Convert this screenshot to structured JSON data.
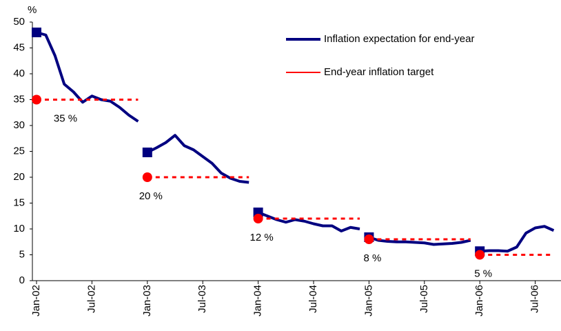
{
  "chart_data": {
    "type": "line",
    "y_axis_label": "%",
    "categories": [
      "Jan-02",
      null,
      null,
      null,
      null,
      null,
      "Jul-02",
      null,
      null,
      null,
      null,
      null,
      "Jan-03",
      null,
      null,
      null,
      null,
      null,
      "Jul-03",
      null,
      null,
      null,
      null,
      null,
      "Jan-04",
      null,
      null,
      null,
      null,
      null,
      "Jul-04",
      null,
      null,
      null,
      null,
      null,
      "Jan-05",
      null,
      null,
      null,
      null,
      null,
      "Jul-05",
      null,
      null,
      null,
      null,
      null,
      "Jan-06",
      null,
      null,
      null,
      null,
      null,
      "Jul-06",
      null,
      null
    ],
    "ylim": [
      0,
      50
    ],
    "yticks": [
      0,
      5,
      10,
      15,
      20,
      25,
      30,
      35,
      40,
      45,
      50
    ],
    "legend": "top-right",
    "series": [
      {
        "name": "Inflation expectation for end-year",
        "color": "#000080",
        "style": "solid",
        "marker": "square",
        "values": [
          48,
          47.5,
          43.5,
          38,
          36.5,
          34.5,
          35.7,
          35,
          34.7,
          33.5,
          32,
          30.8,
          null,
          null,
          null,
          null,
          null,
          null,
          null,
          null,
          null,
          null,
          null,
          null,
          null,
          null,
          null,
          null,
          null,
          null,
          null,
          null,
          null,
          null,
          null,
          null,
          null,
          null,
          null,
          null,
          null,
          null,
          null,
          null,
          null,
          null,
          null,
          null,
          null,
          null,
          null,
          null,
          null,
          null,
          null,
          null,
          null
        ]
      },
      {
        "color": "#000080",
        "style": "solid",
        "marker": "square",
        "values": [
          null,
          null,
          null,
          null,
          null,
          null,
          null,
          null,
          null,
          null,
          null,
          null,
          24.8,
          25.7,
          26.7,
          28.1,
          26.1,
          25.3,
          24,
          22.7,
          20.8,
          19.8,
          19.2,
          19,
          null,
          null,
          null,
          null,
          null,
          null,
          null,
          null,
          null,
          null,
          null,
          null,
          null,
          null,
          null,
          null,
          null,
          null,
          null,
          null,
          null,
          null,
          null,
          null,
          null,
          null,
          null,
          null,
          null,
          null,
          null,
          null,
          null
        ]
      },
      {
        "color": "#000080",
        "style": "solid",
        "marker": "square",
        "values": [
          null,
          null,
          null,
          null,
          null,
          null,
          null,
          null,
          null,
          null,
          null,
          null,
          null,
          null,
          null,
          null,
          null,
          null,
          null,
          null,
          null,
          null,
          null,
          null,
          13.2,
          12.5,
          11.8,
          11.3,
          11.8,
          11.5,
          11,
          10.6,
          10.6,
          9.6,
          10.3,
          10,
          null,
          null,
          null,
          null,
          null,
          null,
          null,
          null,
          null,
          null,
          null,
          null,
          null,
          null,
          null,
          null,
          null,
          null,
          null,
          null,
          null
        ]
      },
      {
        "color": "#000080",
        "style": "solid",
        "marker": "square",
        "values": [
          null,
          null,
          null,
          null,
          null,
          null,
          null,
          null,
          null,
          null,
          null,
          null,
          null,
          null,
          null,
          null,
          null,
          null,
          null,
          null,
          null,
          null,
          null,
          null,
          null,
          null,
          null,
          null,
          null,
          null,
          null,
          null,
          null,
          null,
          null,
          null,
          8.4,
          7.8,
          7.6,
          7.5,
          7.5,
          7.4,
          7.3,
          7,
          7.1,
          7.2,
          7.4,
          7.8,
          null,
          null,
          null,
          null,
          null,
          null,
          null,
          null,
          null
        ]
      },
      {
        "color": "#000080",
        "style": "solid",
        "marker": "square",
        "values": [
          null,
          null,
          null,
          null,
          null,
          null,
          null,
          null,
          null,
          null,
          null,
          null,
          null,
          null,
          null,
          null,
          null,
          null,
          null,
          null,
          null,
          null,
          null,
          null,
          null,
          null,
          null,
          null,
          null,
          null,
          null,
          null,
          null,
          null,
          null,
          null,
          null,
          null,
          null,
          null,
          null,
          null,
          null,
          null,
          null,
          null,
          null,
          null,
          5.7,
          5.8,
          5.8,
          5.7,
          6.5,
          9.2,
          10.2,
          10.5,
          9.7
        ]
      },
      {
        "name": "End-year inflation target",
        "color": "#ff0000",
        "style": "dashed",
        "marker": "circle",
        "label": "35 %",
        "values": [
          35,
          35,
          35,
          35,
          35,
          35,
          35,
          35,
          35,
          35,
          35,
          35,
          null,
          null,
          null,
          null,
          null,
          null,
          null,
          null,
          null,
          null,
          null,
          null,
          null,
          null,
          null,
          null,
          null,
          null,
          null,
          null,
          null,
          null,
          null,
          null,
          null,
          null,
          null,
          null,
          null,
          null,
          null,
          null,
          null,
          null,
          null,
          null,
          null,
          null,
          null,
          null,
          null,
          null,
          null,
          null,
          null
        ]
      },
      {
        "color": "#ff0000",
        "style": "dashed",
        "marker": "circle",
        "label": "20 %",
        "values": [
          null,
          null,
          null,
          null,
          null,
          null,
          null,
          null,
          null,
          null,
          null,
          null,
          20,
          20,
          20,
          20,
          20,
          20,
          20,
          20,
          20,
          20,
          20,
          20,
          null,
          null,
          null,
          null,
          null,
          null,
          null,
          null,
          null,
          null,
          null,
          null,
          null,
          null,
          null,
          null,
          null,
          null,
          null,
          null,
          null,
          null,
          null,
          null,
          null,
          null,
          null,
          null,
          null,
          null,
          null,
          null,
          null
        ]
      },
      {
        "color": "#ff0000",
        "style": "dashed",
        "marker": "circle",
        "label": "12 %",
        "values": [
          null,
          null,
          null,
          null,
          null,
          null,
          null,
          null,
          null,
          null,
          null,
          null,
          null,
          null,
          null,
          null,
          null,
          null,
          null,
          null,
          null,
          null,
          null,
          null,
          12,
          12,
          12,
          12,
          12,
          12,
          12,
          12,
          12,
          12,
          12,
          12,
          null,
          null,
          null,
          null,
          null,
          null,
          null,
          null,
          null,
          null,
          null,
          null,
          null,
          null,
          null,
          null,
          null,
          null,
          null,
          null,
          null
        ]
      },
      {
        "color": "#ff0000",
        "style": "dashed",
        "marker": "circle",
        "label": "8 %",
        "values": [
          null,
          null,
          null,
          null,
          null,
          null,
          null,
          null,
          null,
          null,
          null,
          null,
          null,
          null,
          null,
          null,
          null,
          null,
          null,
          null,
          null,
          null,
          null,
          null,
          null,
          null,
          null,
          null,
          null,
          null,
          null,
          null,
          null,
          null,
          null,
          null,
          8,
          8,
          8,
          8,
          8,
          8,
          8,
          8,
          8,
          8,
          8,
          8,
          null,
          null,
          null,
          null,
          null,
          null,
          null,
          null,
          null
        ]
      },
      {
        "color": "#ff0000",
        "style": "dashed",
        "marker": "circle",
        "label": "5 %",
        "values": [
          null,
          null,
          null,
          null,
          null,
          null,
          null,
          null,
          null,
          null,
          null,
          null,
          null,
          null,
          null,
          null,
          null,
          null,
          null,
          null,
          null,
          null,
          null,
          null,
          null,
          null,
          null,
          null,
          null,
          null,
          null,
          null,
          null,
          null,
          null,
          null,
          null,
          null,
          null,
          null,
          null,
          null,
          null,
          null,
          null,
          null,
          null,
          null,
          5,
          5,
          5,
          5,
          5,
          5,
          5,
          5,
          5
        ]
      }
    ]
  }
}
